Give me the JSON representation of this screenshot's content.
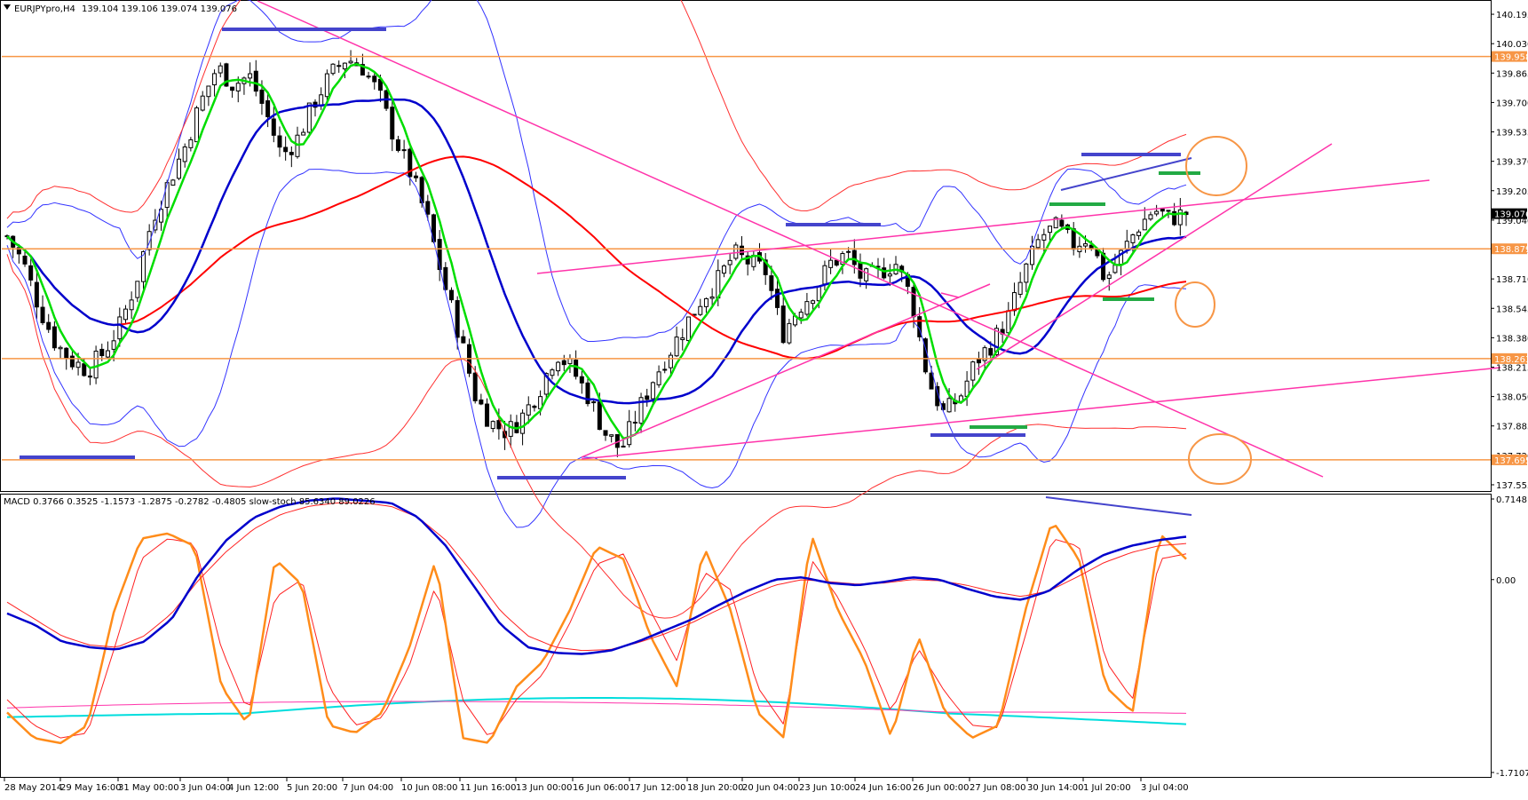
{
  "chart_data": {
    "type": "candlestick",
    "symbol_header": "EURJPYpro,H4",
    "ohlc_header": "139.104 139.106 139.074 139.076",
    "price_ticks": [
      "140.195",
      "140.030",
      "139.865",
      "139.700",
      "139.535",
      "139.370",
      "139.205",
      "139.040",
      "138.875",
      "138.710",
      "138.545",
      "138.380",
      "138.215",
      "138.050",
      "137.885",
      "137.720",
      "137.555"
    ],
    "price_range": [
      137.52,
      140.27
    ],
    "price_badges": [
      {
        "value": "139.958",
        "bg": "#f79646",
        "fg": "#ffffff"
      },
      {
        "value": "139.076",
        "bg": "#000000",
        "fg": "#ffffff"
      },
      {
        "value": "138.879",
        "bg": "#f79646",
        "fg": "#ffffff"
      },
      {
        "value": "138.263",
        "bg": "#f79646",
        "fg": "#ffffff"
      },
      {
        "value": "137.695",
        "bg": "#f79646",
        "fg": "#ffffff"
      }
    ],
    "horizontal_levels": [
      139.958,
      138.879,
      138.263,
      137.695
    ],
    "time_labels": [
      "28 May 2014",
      "29 May 16:00",
      "31 May 00:00",
      "3 Jun 04:00",
      "4 Jun 12:00",
      "5 Jun 20:00",
      "7 Jun 04:00",
      "10 Jun 08:00",
      "11 Jun 16:00",
      "13 Jun 00:00",
      "16 Jun 06:00",
      "17 Jun 12:00",
      "18 Jun 20:00",
      "20 Jun 04:00",
      "23 Jun 10:00",
      "24 Jun 16:00",
      "26 Jun 00:00",
      "27 Jun 08:00",
      "30 Jun 14:00",
      "1 Jul 20:00",
      "3 Jul 04:00"
    ],
    "close_path": [
      138.95,
      138.8,
      138.55,
      138.35,
      138.25,
      138.2,
      138.3,
      138.45,
      138.7,
      139.05,
      139.25,
      139.45,
      139.7,
      139.9,
      139.8,
      139.85,
      139.65,
      139.4,
      139.5,
      139.7,
      139.85,
      139.95,
      139.9,
      139.75,
      139.5,
      139.3,
      139.05,
      138.7,
      138.4,
      138.05,
      137.9,
      137.85,
      137.95,
      138.1,
      138.3,
      138.2,
      138.05,
      137.85,
      137.75,
      137.95,
      138.15,
      138.3,
      138.45,
      138.6,
      138.7,
      138.85,
      138.8,
      138.75,
      138.4,
      138.55,
      138.65,
      138.8,
      138.85,
      138.7,
      138.75,
      138.8,
      138.6,
      138.15,
      137.95,
      138.05,
      138.25,
      138.35,
      138.5,
      138.75,
      138.95,
      139.0,
      138.9,
      138.95,
      138.7,
      138.85,
      139.0,
      139.1,
      139.05,
      139.08
    ],
    "indicator_header": "MACD 0.3766 0.3525 -1.1573 -1.2875 -0.2782 -0.4805  slow-stoch 85.6340 89.0226",
    "indicator_ticks": [
      "0.7148",
      "0.00",
      "-1.7107"
    ],
    "macd_main": [
      -0.3,
      -0.4,
      -0.55,
      -0.6,
      -0.62,
      -0.55,
      -0.35,
      0.05,
      0.35,
      0.55,
      0.65,
      0.7,
      0.72,
      0.7,
      0.68,
      0.55,
      0.3,
      -0.05,
      -0.4,
      -0.6,
      -0.65,
      -0.66,
      -0.63,
      -0.55,
      -0.45,
      -0.35,
      -0.22,
      -0.1,
      0.0,
      0.02,
      -0.03,
      -0.05,
      -0.02,
      0.02,
      0.0,
      -0.08,
      -0.15,
      -0.18,
      -0.1,
      0.08,
      0.22,
      0.3,
      0.35,
      0.38
    ],
    "macd_signal": [
      -0.2,
      -0.35,
      -0.5,
      -0.58,
      -0.6,
      -0.5,
      -0.3,
      0.0,
      0.25,
      0.45,
      0.58,
      0.65,
      0.68,
      0.68,
      0.65,
      0.55,
      0.35,
      0.05,
      -0.28,
      -0.5,
      -0.6,
      -0.63,
      -0.62,
      -0.56,
      -0.48,
      -0.38,
      -0.26,
      -0.15,
      -0.05,
      0.0,
      -0.02,
      -0.04,
      -0.03,
      0.0,
      -0.01,
      -0.05,
      -0.11,
      -0.15,
      -0.1,
      0.02,
      0.15,
      0.24,
      0.3,
      0.32
    ],
    "stoch_main": [
      20,
      10,
      8,
      15,
      60,
      88,
      90,
      85,
      30,
      15,
      80,
      70,
      15,
      12,
      20,
      45,
      80,
      10,
      8,
      30,
      40,
      60,
      85,
      80,
      50,
      30,
      85,
      60,
      20,
      10,
      90,
      60,
      40,
      10,
      50,
      20,
      10,
      15,
      60,
      95,
      80,
      30,
      20,
      90,
      80
    ],
    "stoch_signal": [
      25,
      15,
      10,
      12,
      45,
      80,
      88,
      86,
      45,
      20,
      65,
      72,
      30,
      15,
      18,
      38,
      70,
      25,
      10,
      25,
      35,
      55,
      78,
      82,
      60,
      40,
      75,
      68,
      30,
      15,
      80,
      65,
      45,
      20,
      45,
      28,
      15,
      14,
      50,
      88,
      85,
      40,
      25,
      80,
      82
    ]
  }
}
